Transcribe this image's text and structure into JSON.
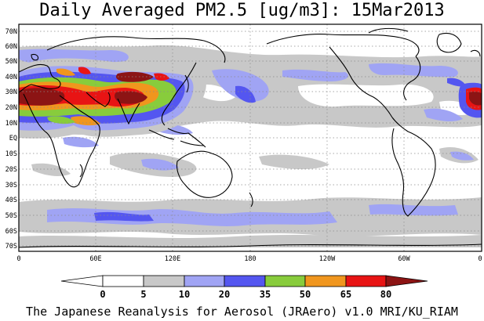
{
  "title": "Daily Averaged PM2.5 [ug/m3]: 15Mar2013",
  "footer": "The Japanese Reanalysis for Aerosol (JRAero) v1.0 MRI/KU_RIAM",
  "map": {
    "lat_labels": [
      "70N",
      "60N",
      "50N",
      "40N",
      "30N",
      "20N",
      "10N",
      "EQ",
      "10S",
      "20S",
      "30S",
      "40S",
      "50S",
      "60S",
      "70S"
    ],
    "lon_labels": [
      "0",
      "60E",
      "120E",
      "180",
      "120W",
      "60W",
      "0"
    ]
  },
  "colorbar": {
    "ticks": [
      "0",
      "5",
      "10",
      "20",
      "35",
      "50",
      "65",
      "80"
    ],
    "colors": [
      "#ffffff",
      "#ffffff",
      "#c8c8c8",
      "#a0a4f4",
      "#5456f0",
      "#88cc3c",
      "#f0961e",
      "#e81414",
      "#8c1414"
    ]
  }
}
